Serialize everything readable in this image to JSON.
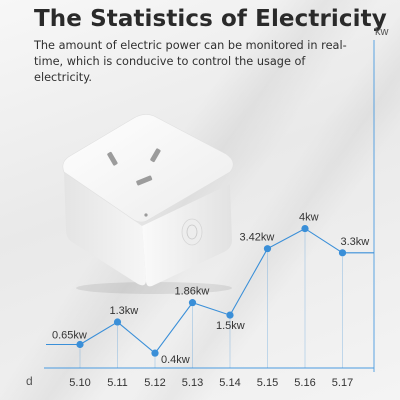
{
  "header": {
    "title": "The Statistics of Electricity",
    "subtitle": "The amount of electric power can be monitored in real-time, which is conducive to control the usage of electricity."
  },
  "chart_data": {
    "type": "line",
    "ylabel": "kw",
    "xlabel": "d",
    "categories": [
      "5.10",
      "5.11",
      "5.12",
      "5.13",
      "5.14",
      "5.15",
      "5.16",
      "5.17"
    ],
    "series": [
      {
        "values": [
          0.65,
          1.3,
          0.4,
          1.86,
          1.5,
          3.42,
          4,
          3.3
        ],
        "labels": [
          "0.65kw",
          "1.3kw",
          "0.4kw",
          "1.86kw",
          "1.5kw",
          "3.42kw",
          "4kw",
          "3.3kw"
        ]
      }
    ],
    "ylim": [
      0,
      6
    ],
    "grid": false,
    "line_color": "#3a8fd8"
  },
  "product": {
    "icon": "smart-plug-image"
  }
}
